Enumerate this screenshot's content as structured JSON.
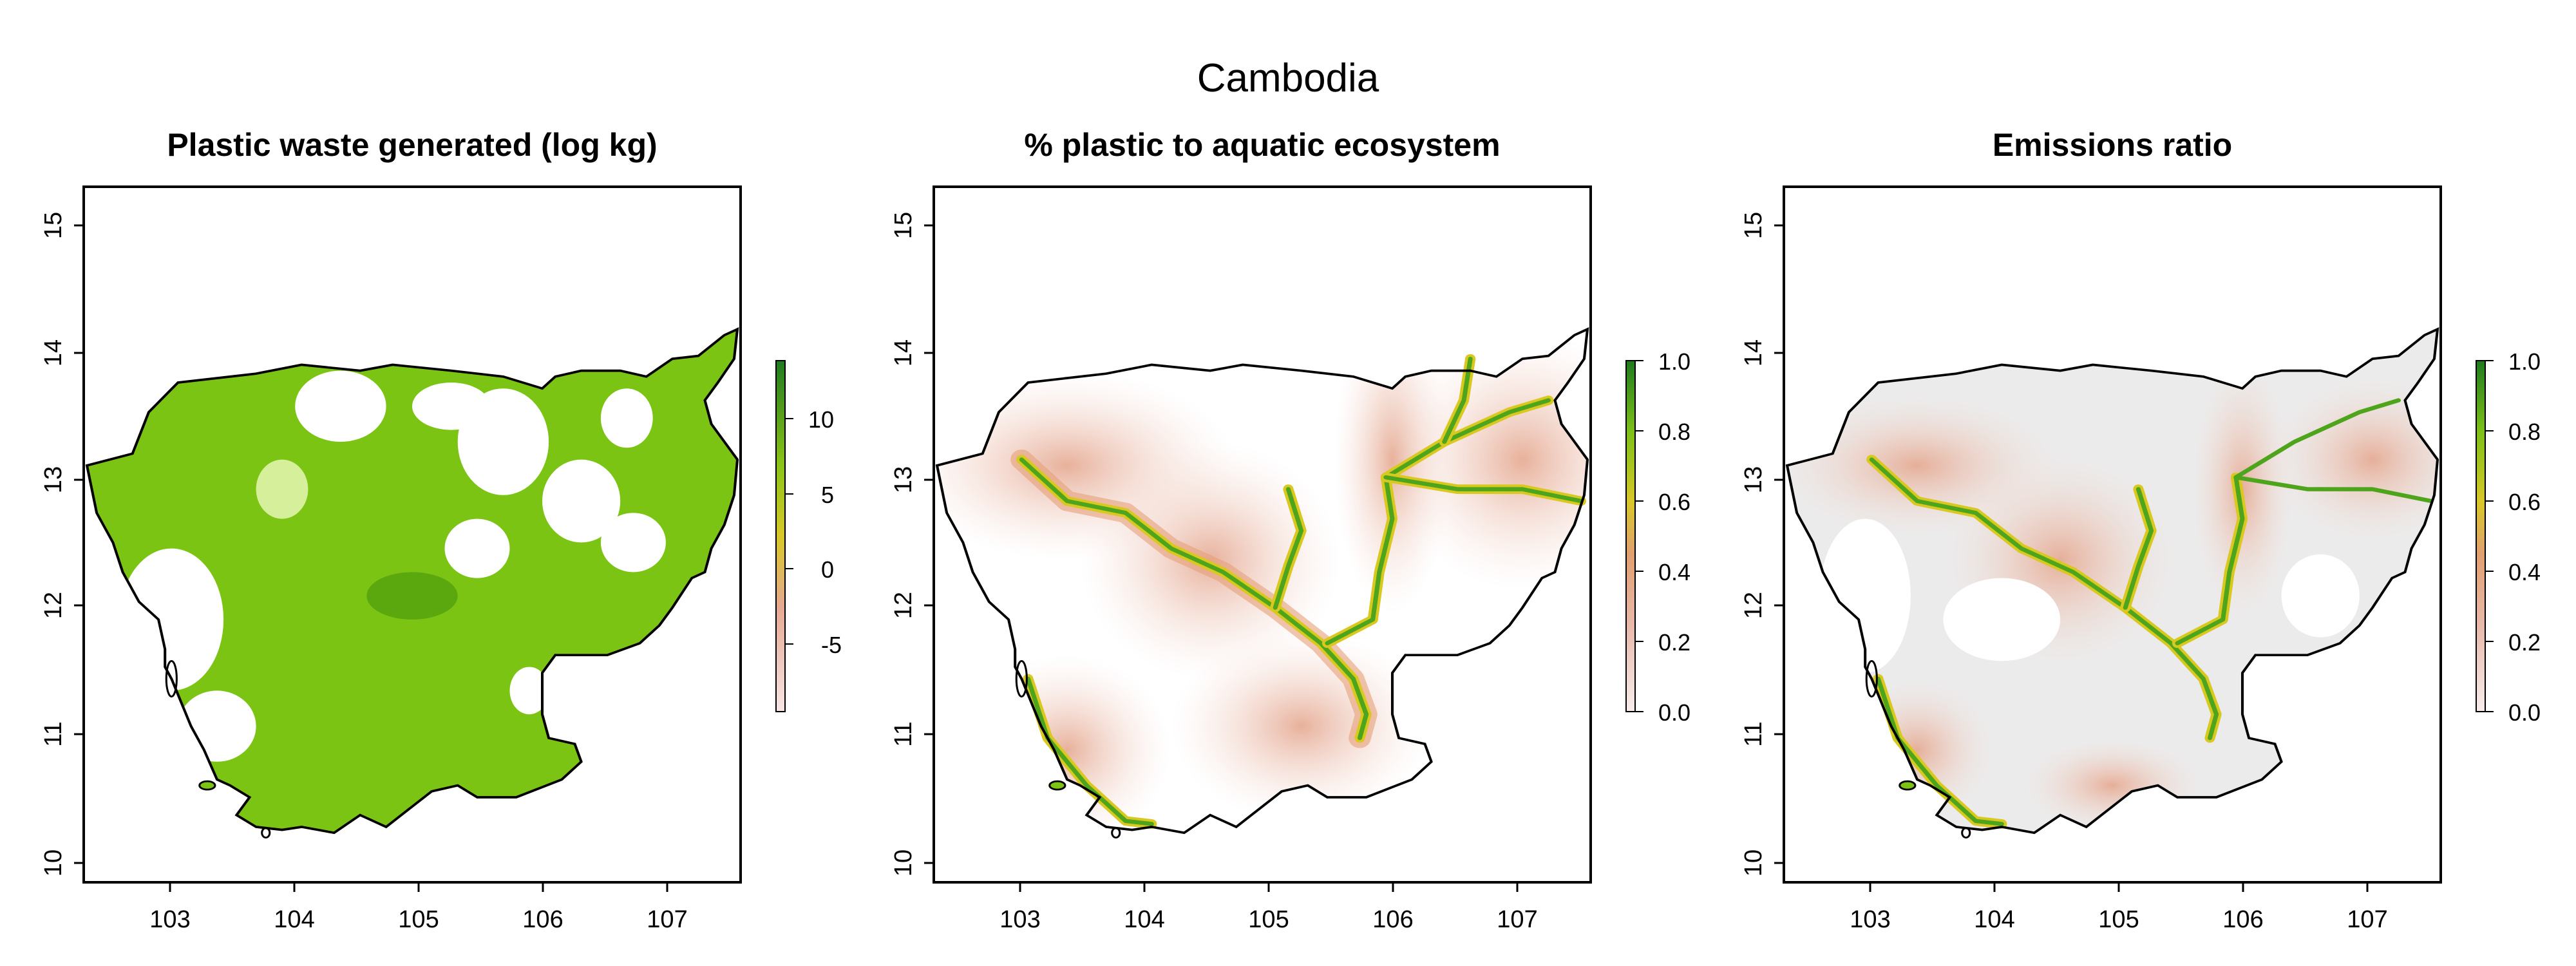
{
  "figure_title": "Cambodia",
  "panels": [
    {
      "title": "Plastic waste generated (log kg)",
      "x_ticks": [
        "103",
        "104",
        "105",
        "106",
        "107"
      ],
      "y_ticks": [
        "10",
        "11",
        "12",
        "13",
        "14",
        "15"
      ],
      "legend_ticks": [
        "-5",
        "0",
        "5",
        "10"
      ]
    },
    {
      "title": "% plastic to aquatic ecosystem",
      "x_ticks": [
        "103",
        "104",
        "105",
        "106",
        "107"
      ],
      "y_ticks": [
        "10",
        "11",
        "12",
        "13",
        "14",
        "15"
      ],
      "legend_ticks": [
        "0.0",
        "0.2",
        "0.4",
        "0.6",
        "0.8",
        "1.0"
      ]
    },
    {
      "title": "Emissions ratio",
      "x_ticks": [
        "103",
        "104",
        "105",
        "106",
        "107"
      ],
      "y_ticks": [
        "10",
        "11",
        "12",
        "13",
        "14",
        "15"
      ],
      "legend_ticks": [
        "0.0",
        "0.2",
        "0.4",
        "0.6",
        "0.8",
        "1.0"
      ]
    }
  ],
  "colors": {
    "waste_fill": "#7cc414",
    "river": "#4ea51c",
    "river_halo_inner": "#d8c820",
    "river_halo_outer": "#e6a07a",
    "no_data_grey": "#ebebeb",
    "legend_low": "#f6e6e6",
    "legend_mid": "#e0b96a",
    "legend_high": "#1f7a1f"
  }
}
